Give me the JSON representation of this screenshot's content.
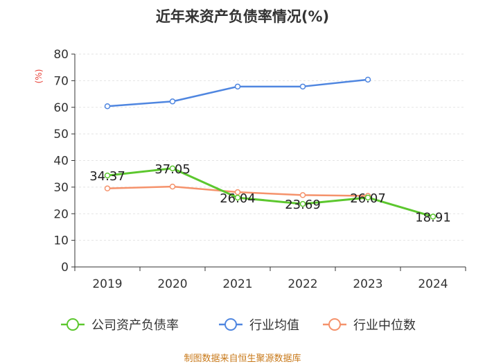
{
  "chart_data": {
    "type": "line",
    "title": "近年来资产负债率情况(%)",
    "ylabel": "(%)",
    "xlabel": "",
    "categories": [
      "2019",
      "2020",
      "2021",
      "2022",
      "2023",
      "2024"
    ],
    "ylim": [
      0,
      80
    ],
    "yticks": [
      0,
      10,
      20,
      30,
      40,
      50,
      60,
      70,
      80
    ],
    "grid": true,
    "legend_position": "bottom",
    "series": [
      {
        "name": "公司资产负债率",
        "color": "#5cc72e",
        "values": [
          34.37,
          37.05,
          26.04,
          23.69,
          26.07,
          18.91
        ],
        "labels": [
          "34.37",
          "37.05",
          "26.04",
          "23.69",
          "26.07",
          "18.91"
        ]
      },
      {
        "name": "行业均值",
        "color": "#4f86e0",
        "values": [
          60.4,
          62.2,
          67.8,
          67.8,
          70.4,
          null
        ]
      },
      {
        "name": "行业中位数",
        "color": "#f5926b",
        "values": [
          29.5,
          30.2,
          28.1,
          27.0,
          26.7,
          null
        ]
      }
    ]
  },
  "source": "制图数据来自恒生聚源数据库"
}
